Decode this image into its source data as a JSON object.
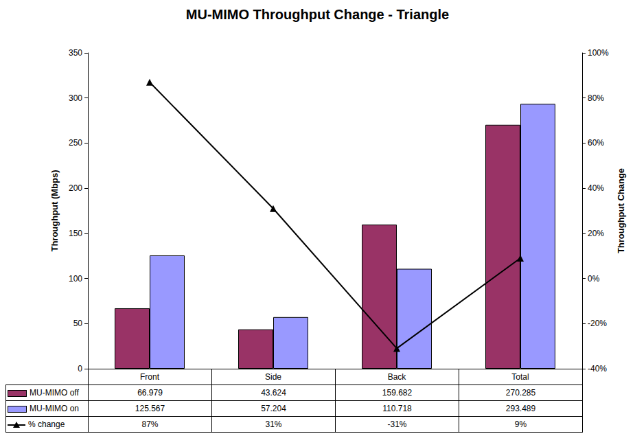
{
  "chart_data": {
    "type": "bar",
    "title": "MU-MIMO Throughput Change - Triangle",
    "y_label": "Throughput (Mbps)",
    "y2_label": "Throughput Change",
    "categories": [
      "Front",
      "Side",
      "Back",
      "Total"
    ],
    "series": [
      {
        "name": "MU-MIMO off",
        "color": "#993366",
        "values": [
          66.979,
          43.624,
          159.682,
          270.285
        ]
      },
      {
        "name": "MU-MIMO on",
        "color": "#9999FF",
        "values": [
          125.567,
          57.204,
          110.718,
          293.489
        ]
      },
      {
        "name": "% change",
        "color": "#000000",
        "type": "line",
        "marker": "triangle",
        "axis": "y2",
        "values": [
          87,
          31,
          -31,
          9
        ],
        "value_labels": [
          "87%",
          "31%",
          "-31%",
          "9%"
        ]
      }
    ],
    "ylim": [
      0,
      350
    ],
    "yticks": [
      0,
      50,
      100,
      150,
      200,
      250,
      300,
      350
    ],
    "y2lim": [
      -40,
      100
    ],
    "y2ticks": [
      {
        "value": -40,
        "label": "-40%"
      },
      {
        "value": -20,
        "label": "-20%"
      },
      {
        "value": 0,
        "label": "0%"
      },
      {
        "value": 20,
        "label": "20%"
      },
      {
        "value": 40,
        "label": "40%"
      },
      {
        "value": 60,
        "label": "60%"
      },
      {
        "value": 80,
        "label": "80%"
      },
      {
        "value": 100,
        "label": "100%"
      }
    ],
    "grid": false,
    "legend": "bottom"
  }
}
